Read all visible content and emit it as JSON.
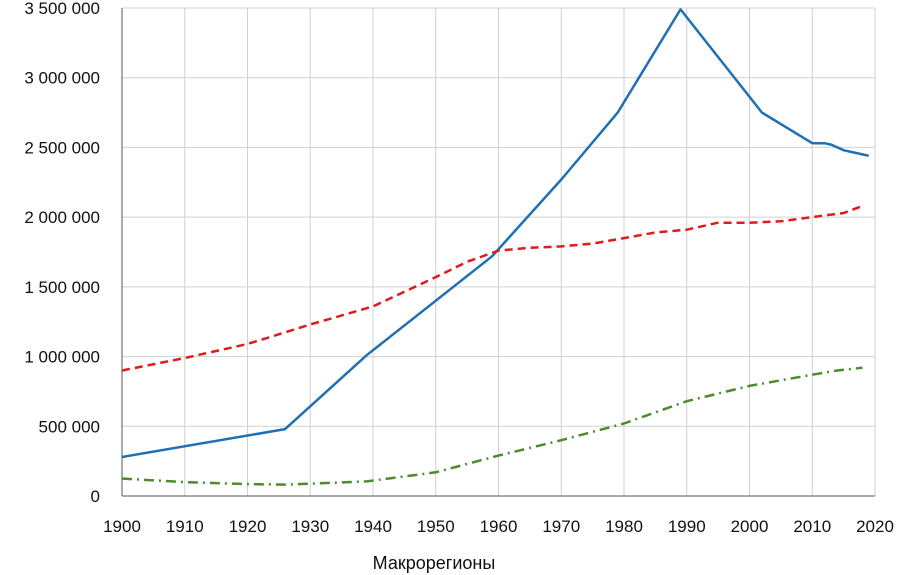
{
  "chart_data": {
    "type": "line",
    "title": "",
    "xlabel": "Макрорегионы",
    "ylabel": "",
    "xlim": [
      1900,
      2020
    ],
    "ylim": [
      0,
      3500000
    ],
    "grid": "vertical and horizontal",
    "x_ticks": [
      "1900",
      "1910",
      "1920",
      "1930",
      "1940",
      "1950",
      "1960",
      "1970",
      "1980",
      "1990",
      "2000",
      "2010",
      "2020"
    ],
    "y_ticks": [
      "0",
      "500 000",
      "1 000 000",
      "1 500 000",
      "2 000 000",
      "2 500 000",
      "3 000 000",
      "3 500 000"
    ],
    "series": [
      {
        "color": "#1f6fb4",
        "dash": "solid",
        "x": [
          1900,
          1926,
          1939,
          1959,
          1970,
          1979,
          1989,
          2002,
          2010,
          2012,
          2013,
          2014,
          2015,
          2016,
          2017,
          2018,
          2019
        ],
        "values": [
          280000,
          480000,
          1010000,
          1720000,
          2270000,
          2750000,
          3490000,
          2750000,
          2530000,
          2530000,
          2520000,
          2500000,
          2480000,
          2470000,
          2460000,
          2450000,
          2440000
        ]
      },
      {
        "color": "#e01b1b",
        "dash": "dashed",
        "x": [
          1900,
          1910,
          1920,
          1930,
          1940,
          1950,
          1955,
          1960,
          1965,
          1970,
          1975,
          1980,
          1985,
          1990,
          1995,
          2000,
          2005,
          2010,
          2015,
          2018
        ],
        "values": [
          900000,
          990000,
          1090000,
          1230000,
          1360000,
          1570000,
          1680000,
          1760000,
          1780000,
          1790000,
          1810000,
          1850000,
          1890000,
          1910000,
          1960000,
          1960000,
          1970000,
          2000000,
          2030000,
          2080000
        ]
      },
      {
        "color": "#4e8a2f",
        "dash": "dash-dot",
        "x": [
          1900,
          1910,
          1920,
          1926,
          1930,
          1939,
          1950,
          1960,
          1970,
          1980,
          1990,
          2000,
          2010,
          2014,
          2018
        ],
        "values": [
          125000,
          100000,
          85000,
          82000,
          88000,
          105000,
          170000,
          290000,
          400000,
          520000,
          680000,
          790000,
          870000,
          900000,
          920000
        ]
      }
    ]
  }
}
